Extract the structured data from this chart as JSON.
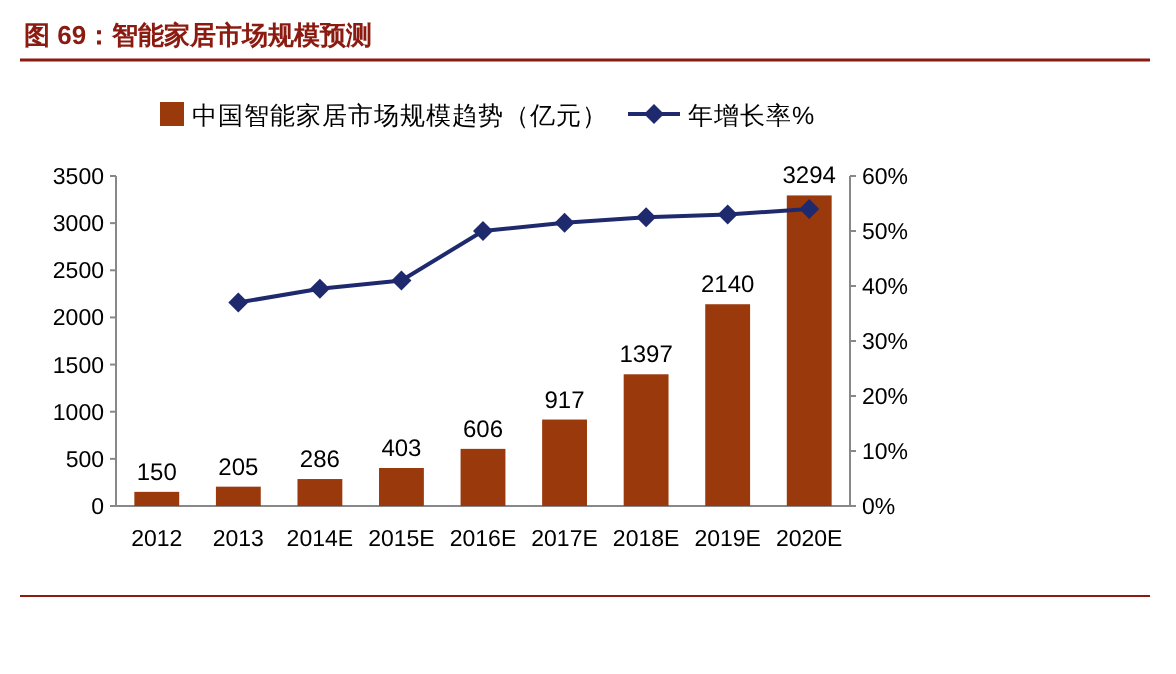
{
  "chart_data": {
    "type": "bar",
    "title": "图 69：智能家居市场规模预测",
    "categories": [
      "2012",
      "2013",
      "2014E",
      "2015E",
      "2016E",
      "2017E",
      "2018E",
      "2019E",
      "2020E"
    ],
    "series": [
      {
        "name": "中国智能家居市场规模趋势（亿元）",
        "color": "#9a3a0c",
        "values": [
          150,
          205,
          286,
          403,
          606,
          917,
          1397,
          2140,
          3294
        ],
        "value_labels": [
          "150",
          "205",
          "286",
          "403",
          "606",
          "917",
          "1397",
          "2140",
          "3294"
        ]
      },
      {
        "type": "line",
        "axis": "y2",
        "name": "年增长率%",
        "color": "#1f2a6e",
        "marker": "diamond",
        "values": [
          null,
          37,
          39.5,
          41,
          50,
          51.5,
          52.5,
          53,
          54
        ]
      }
    ],
    "ylim": [
      0,
      3500
    ],
    "yticks": [
      0,
      500,
      1000,
      1500,
      2000,
      2500,
      3000,
      3500
    ],
    "y2lim": [
      0,
      60
    ],
    "y2ticks": [
      {
        "value": 0,
        "label": "0%"
      },
      {
        "value": 10,
        "label": "10%"
      },
      {
        "value": 20,
        "label": "20%"
      },
      {
        "value": 30,
        "label": "30%"
      },
      {
        "value": 40,
        "label": "40%"
      },
      {
        "value": 50,
        "label": "50%"
      },
      {
        "value": 60,
        "label": "60%"
      }
    ],
    "legend": "top",
    "grid": false
  }
}
